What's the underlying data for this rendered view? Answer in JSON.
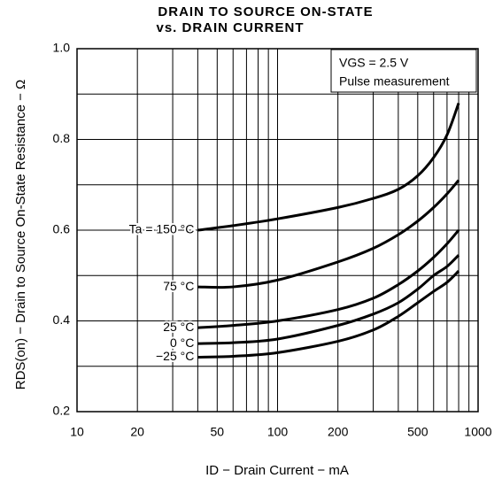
{
  "chart_data": {
    "type": "line",
    "title": [
      "DRAIN TO SOURCE ON-STATE",
      "vs. DRAIN CURRENT"
    ],
    "x_label": "ID − Drain Current − mA",
    "y_label": "RDS(on) − Drain to Source On-State Resistance − Ω",
    "annotations": [
      "VGS = 2.5 V",
      "Pulse measurement"
    ],
    "x_scale": "log",
    "xlim": [
      10,
      1000
    ],
    "xticks": [
      10,
      20,
      50,
      100,
      200,
      500,
      1000
    ],
    "xminor_ticks": [
      30,
      40,
      60,
      70,
      80,
      90,
      300,
      400,
      600,
      700,
      800,
      900
    ],
    "ylim": [
      0.2,
      1.0
    ],
    "yticks": [
      0.2,
      0.4,
      0.6,
      0.8,
      {
        "value": 1.0,
        "label": "1.0"
      }
    ],
    "yminor_ticks": [
      0.3,
      0.5,
      0.7,
      0.9
    ],
    "grid": true,
    "x": [
      40,
      60,
      100,
      200,
      300,
      400,
      500,
      600,
      700,
      800
    ],
    "series": [
      {
        "name": "Ta = 150 °C",
        "color": "#000000",
        "values": [
          0.6,
          0.61,
          0.625,
          0.65,
          0.67,
          0.69,
          0.72,
          0.76,
          0.81,
          0.88
        ]
      },
      {
        "name": "75 °C",
        "color": "#000000",
        "values": [
          0.475,
          0.475,
          0.49,
          0.53,
          0.56,
          0.59,
          0.62,
          0.65,
          0.68,
          0.71
        ]
      },
      {
        "name": "25 °C",
        "color": "#000000",
        "values": [
          0.385,
          0.39,
          0.4,
          0.425,
          0.45,
          0.48,
          0.51,
          0.54,
          0.57,
          0.6
        ]
      },
      {
        "name": "0 °C",
        "color": "#000000",
        "values": [
          0.35,
          0.352,
          0.36,
          0.39,
          0.415,
          0.44,
          0.47,
          0.5,
          0.52,
          0.545
        ]
      },
      {
        "name": "−25 °C",
        "color": "#000000",
        "values": [
          0.32,
          0.322,
          0.33,
          0.355,
          0.38,
          0.41,
          0.44,
          0.465,
          0.485,
          0.51
        ]
      }
    ]
  }
}
